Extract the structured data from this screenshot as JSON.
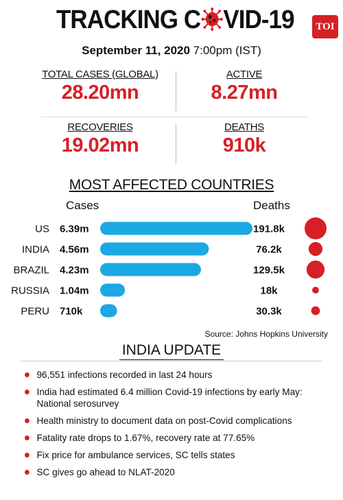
{
  "header": {
    "title_part1": "TRACKING C",
    "title_part2": "VID-19",
    "badge": "TOI"
  },
  "date": {
    "bold": "September 11, 2020",
    "rest": " 7:00pm (IST)"
  },
  "stats": [
    {
      "label": "TOTAL CASES (GLOBAL)",
      "value": "28.20mn"
    },
    {
      "label": "ACTIVE",
      "value": "8.27mn"
    },
    {
      "label": "RECOVERIES",
      "value": "19.02mn"
    },
    {
      "label": "DEATHS",
      "value": "910k"
    }
  ],
  "chart_data": {
    "type": "bar",
    "title": "MOST AFFECTED COUNTRIES",
    "cases_header": "Cases",
    "deaths_header": "Deaths",
    "categories": [
      "US",
      "INDIA",
      "BRAZIL",
      "RUSSIA",
      "PERU"
    ],
    "cases_values": [
      6.39,
      4.56,
      4.23,
      1.04,
      0.71
    ],
    "cases_labels": [
      "6.39m",
      "4.56m",
      "4.23m",
      "1.04m",
      "710k"
    ],
    "deaths_values": [
      191.8,
      76.2,
      129.5,
      18,
      30.3
    ],
    "deaths_labels": [
      "191.8k",
      "76.2k",
      "129.5k",
      "18k",
      "30.3k"
    ],
    "bar_color": "#1ca8e3",
    "bubble_color": "#d71f26",
    "source": "Source: Johns Hopkins University"
  },
  "india_update": {
    "title": "INDIA UPDATE",
    "items": [
      "96,551 infections recorded in last 24 hours",
      "India had estimated 6.4 million Covid-19 infections by early May: National serosurvey",
      "Health ministry to document data on post-Covid complications",
      "Fatality rate drops to 1.67%, recovery rate at 77.65%",
      "Fix price for ambulance services, SC tells states",
      "SC gives go ahead to NLAT-2020"
    ]
  },
  "colors": {
    "accent_red": "#d71f26",
    "bar_blue": "#1ca8e3"
  }
}
